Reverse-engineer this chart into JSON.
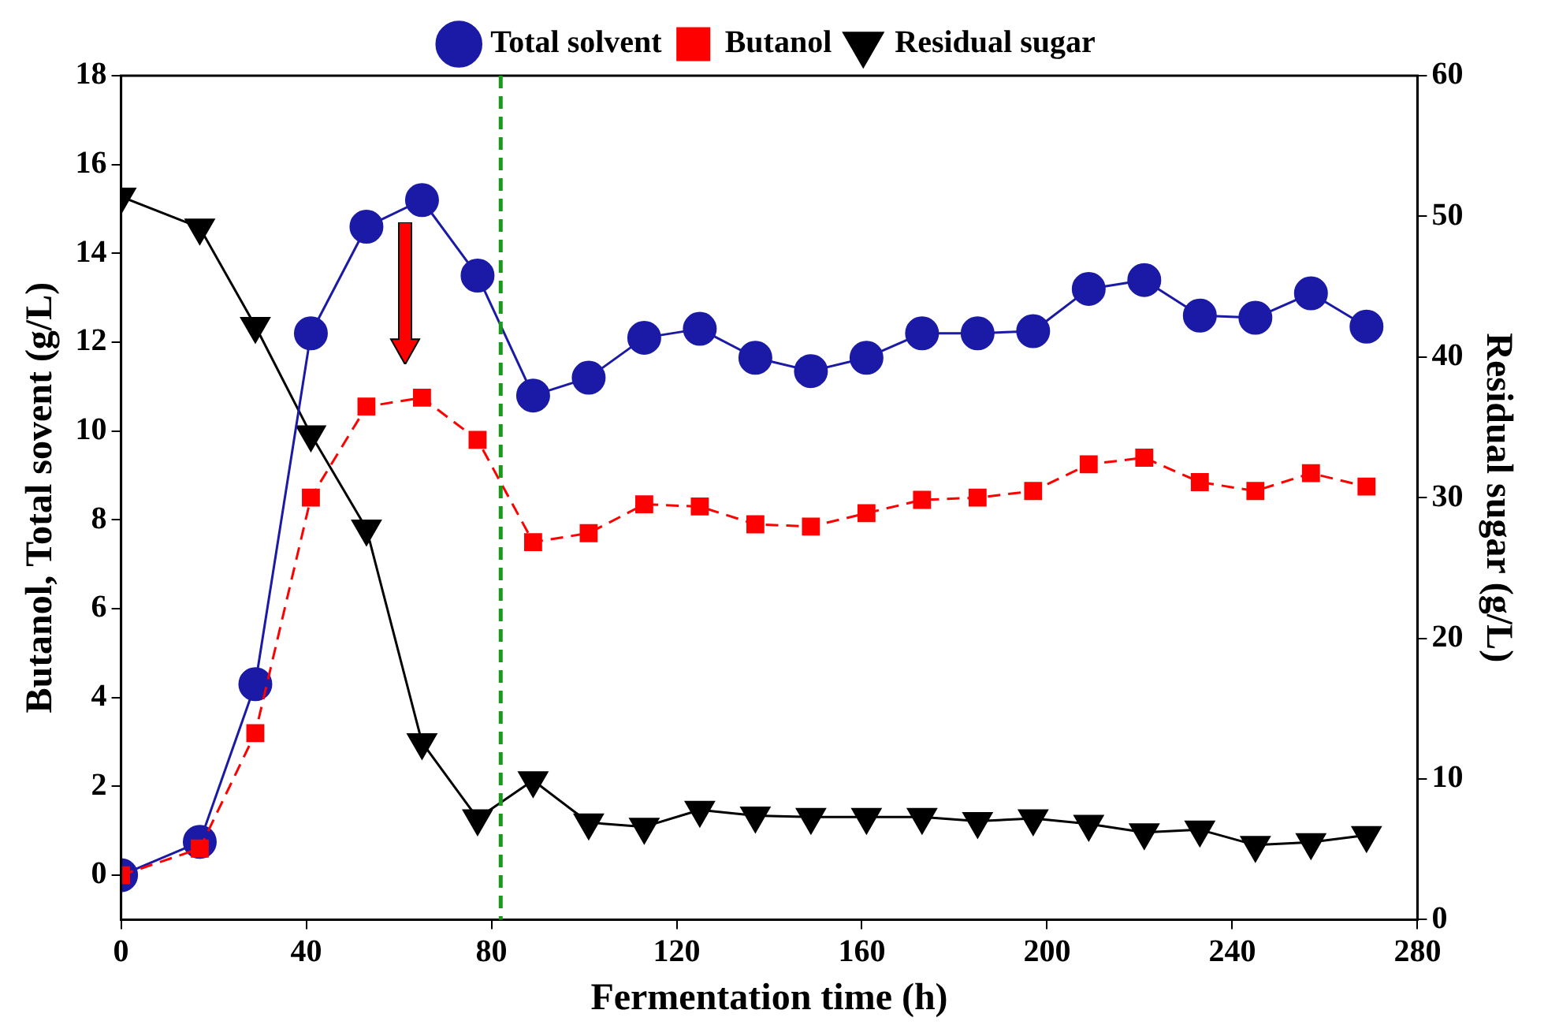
{
  "chart_data": {
    "type": "line",
    "xlabel": "Fermentation time (h)",
    "ylabel": "Butanol, Total sovent (g/L)",
    "y2label": "Residual sugar (g/L)",
    "x": [
      0,
      17,
      29,
      41,
      53,
      65,
      77,
      89,
      101,
      113,
      125,
      137,
      149,
      161,
      173,
      185,
      197,
      209,
      221,
      233,
      245,
      257,
      269
    ],
    "series": [
      {
        "name": "Total solvent",
        "color": "#1a1aa6",
        "marker": "circle",
        "line_style": "solid",
        "values": [
          0,
          0.75,
          4.3,
          12.2,
          14.6,
          15.2,
          13.5,
          10.8,
          11.2,
          12.1,
          12.3,
          11.65,
          11.35,
          11.65,
          12.2,
          12.2,
          12.25,
          13.2,
          13.4,
          12.6,
          12.55,
          13.1,
          12.35
        ]
      },
      {
        "name": "Butanol",
        "color": "#ff0000",
        "marker": "square",
        "line_style": "dashed",
        "values": [
          0,
          0.6,
          3.2,
          8.5,
          10.55,
          10.75,
          9.8,
          7.5,
          7.7,
          8.35,
          8.3,
          7.9,
          7.85,
          8.15,
          8.45,
          8.5,
          8.65,
          9.25,
          9.4,
          8.85,
          8.65,
          9.05,
          8.75
        ]
      },
      {
        "name": "Residual sugar",
        "color": "#000000",
        "marker": "triangle",
        "line_style": "solid",
        "axis": "y2",
        "values": [
          51.4,
          49.2,
          42.2,
          34.5,
          27.8,
          12.6,
          7.2,
          9.9,
          6.9,
          6.6,
          7.8,
          7.4,
          7.3,
          7.3,
          7.3,
          7.0,
          7.2,
          6.8,
          6.2,
          6.4,
          5.3,
          5.5,
          6.0
        ]
      }
    ],
    "xlim": [
      0,
      280
    ],
    "xticks": [
      0,
      40,
      80,
      120,
      160,
      200,
      240,
      280
    ],
    "ylim": [
      -1,
      18
    ],
    "yticks": [
      0,
      2,
      4,
      6,
      8,
      10,
      12,
      14,
      16,
      18
    ],
    "y2lim": [
      0,
      60
    ],
    "y2ticks": [
      0,
      10,
      20,
      30,
      40,
      50,
      60
    ],
    "ref_lines": [
      {
        "axis": "x",
        "value": 82,
        "color": "#1a9a1a",
        "line_style": "dashed"
      }
    ],
    "grid": false,
    "legend": "top"
  }
}
